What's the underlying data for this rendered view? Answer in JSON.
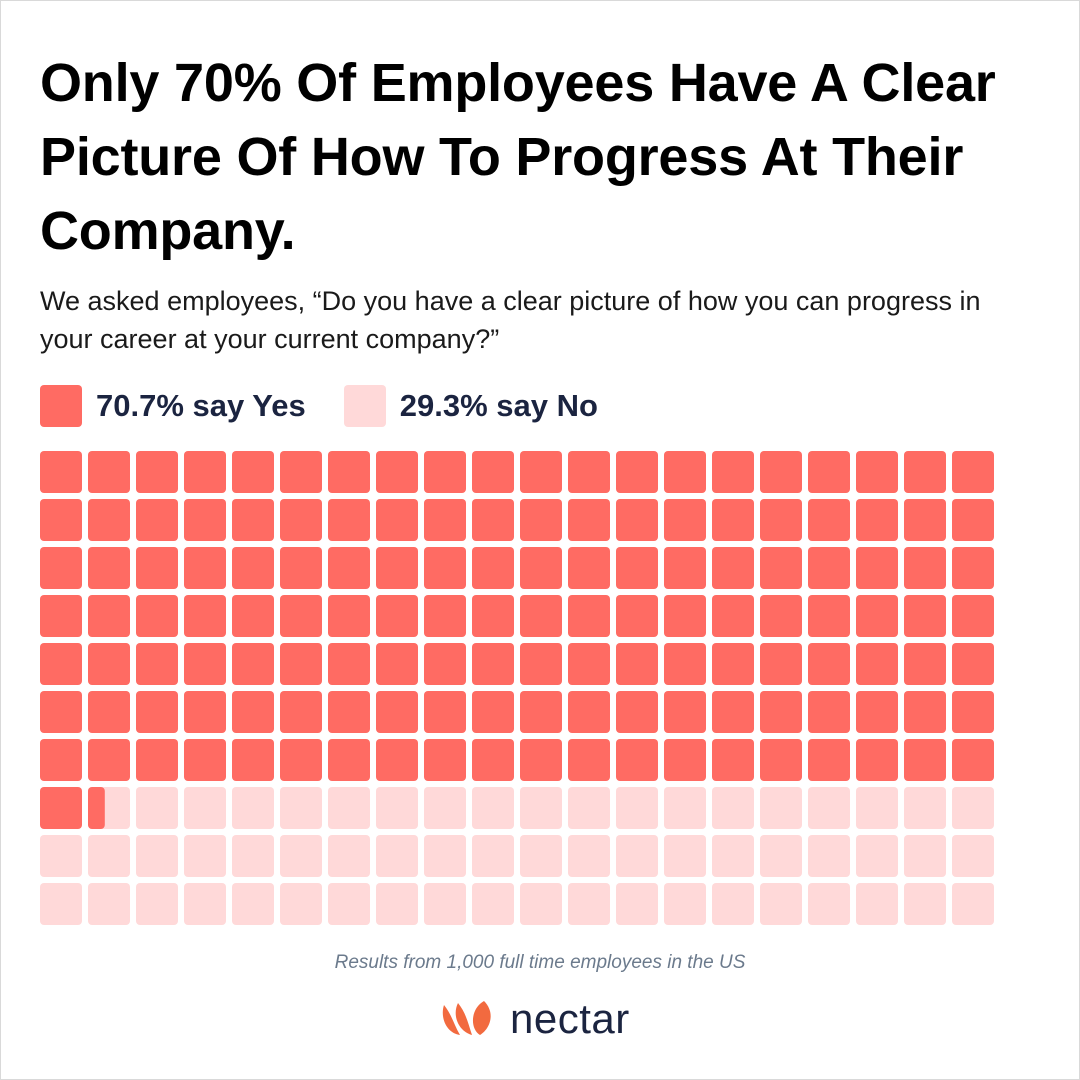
{
  "title": "Only 70% Of Employees Have A Clear Picture Of How To Progress At Their Company.",
  "subtitle": "We asked employees, “Do you have a clear picture of how you can progress in your career at your current company?”",
  "legend": [
    {
      "label": "70.7% say Yes",
      "color": "#ff6b63"
    },
    {
      "label": "29.3% say No",
      "color": "#ffd9d9"
    }
  ],
  "chart_data": {
    "type": "waffle",
    "categories": [
      "Yes",
      "No"
    ],
    "values": [
      70.7,
      29.3
    ],
    "colors": [
      "#ff6b63",
      "#ffd9d9"
    ],
    "rows": 10,
    "cols": 20,
    "total_cells": 200
  },
  "footnote": "Results from 1,000 full time employees in the US",
  "brand": {
    "name": "nectar",
    "color": "#f26a3f",
    "icon": "nectar-logo-icon"
  }
}
